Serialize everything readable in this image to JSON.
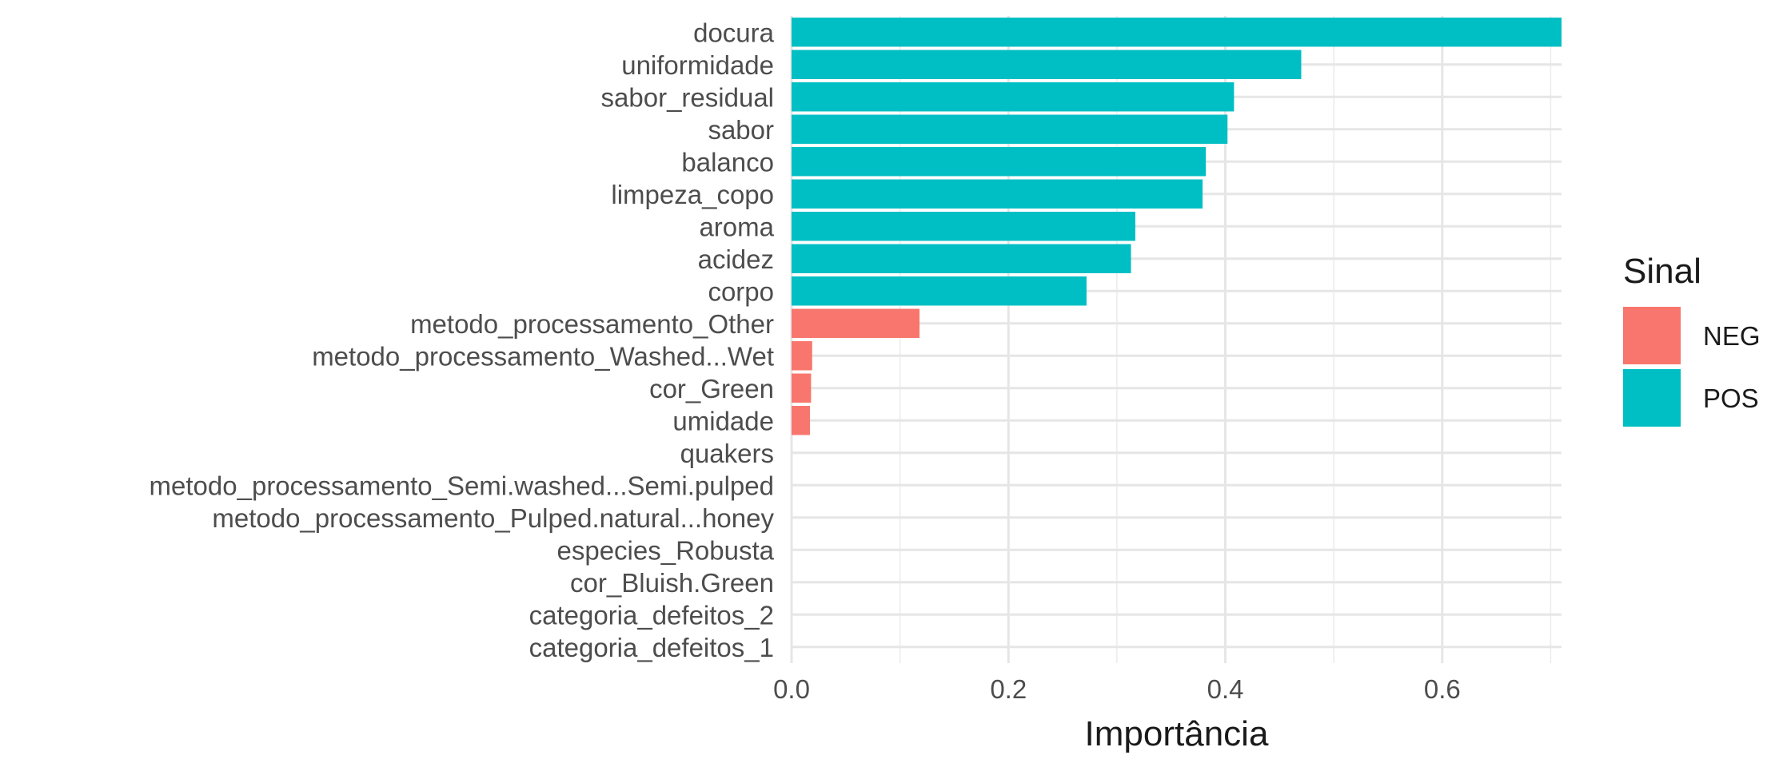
{
  "chart_data": {
    "type": "bar",
    "orientation": "horizontal",
    "title": "",
    "xlabel": "Importância",
    "ylabel": "",
    "xlim": [
      0,
      0.71
    ],
    "x_ticks": [
      0.0,
      0.2,
      0.4,
      0.6
    ],
    "x_tick_labels": [
      "0.0",
      "0.2",
      "0.4",
      "0.6"
    ],
    "grid": true,
    "legend": {
      "title": "Sinal",
      "placement": "right",
      "entries": [
        {
          "label": "NEG",
          "color": "#F8766D"
        },
        {
          "label": "POS",
          "color": "#00BFC4"
        }
      ]
    },
    "categories": [
      "docura",
      "uniformidade",
      "sabor_residual",
      "sabor",
      "balanco",
      "limpeza_copo",
      "aroma",
      "acidez",
      "corpo",
      "metodo_processamento_Other",
      "metodo_processamento_Washed...Wet",
      "cor_Green",
      "umidade",
      "quakers",
      "metodo_processamento_Semi.washed...Semi.pulped",
      "metodo_processamento_Pulped.natural...honey",
      "especies_Robusta",
      "cor_Bluish.Green",
      "categoria_defeitos_2",
      "categoria_defeitos_1"
    ],
    "values": [
      0.71,
      0.47,
      0.408,
      0.402,
      0.382,
      0.379,
      0.317,
      0.313,
      0.272,
      0.118,
      0.019,
      0.018,
      0.017,
      0,
      0,
      0,
      0,
      0,
      0,
      0
    ],
    "signs": [
      "POS",
      "POS",
      "POS",
      "POS",
      "POS",
      "POS",
      "POS",
      "POS",
      "POS",
      "NEG",
      "NEG",
      "NEG",
      "NEG",
      "POS",
      "POS",
      "POS",
      "POS",
      "POS",
      "POS",
      "POS"
    ]
  }
}
